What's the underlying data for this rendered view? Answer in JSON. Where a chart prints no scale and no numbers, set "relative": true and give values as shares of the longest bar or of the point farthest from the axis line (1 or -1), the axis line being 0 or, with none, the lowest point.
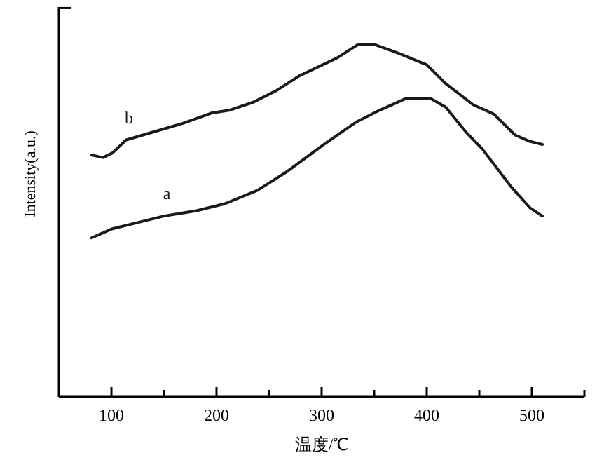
{
  "chart_data": {
    "type": "line",
    "relative": true,
    "xlabel": "温度/℃",
    "ylabel": "Intensity(a.u.)",
    "xlim": [
      50,
      550
    ],
    "xticks": [
      100,
      {
        "value": 150,
        "label": null
      },
      200,
      {
        "value": 250,
        "label": null
      },
      300,
      {
        "value": 350,
        "label": null
      },
      400,
      {
        "value": 450,
        "label": null
      },
      500,
      {
        "value": 550,
        "label": null
      }
    ],
    "line_style": "solid",
    "series": [
      {
        "name": "a",
        "color": "#1a1a1a",
        "x": [
          81,
          101,
          123,
          150,
          181,
          208,
          239,
          266,
          302,
          333,
          355,
          380,
          404,
          418,
          438,
          453,
          480,
          498,
          510
        ],
        "values": [
          0.451,
          0.477,
          0.493,
          0.513,
          0.528,
          0.548,
          0.586,
          0.637,
          0.716,
          0.78,
          0.813,
          0.846,
          0.846,
          0.822,
          0.749,
          0.703,
          0.597,
          0.537,
          0.513
        ]
      },
      {
        "name": "b",
        "color": "#1a1a1a",
        "x": [
          81,
          92,
          101,
          114,
          130,
          168,
          195,
          212,
          235,
          257,
          279,
          315,
          335,
          351,
          373,
          400,
          418,
          444,
          464,
          484,
          498,
          510
        ],
        "values": [
          0.686,
          0.679,
          0.692,
          0.729,
          0.743,
          0.776,
          0.805,
          0.813,
          0.836,
          0.869,
          0.911,
          0.962,
          1.0,
          0.999,
          0.975,
          0.942,
          0.889,
          0.829,
          0.802,
          0.743,
          0.725,
          0.716
        ]
      }
    ]
  }
}
